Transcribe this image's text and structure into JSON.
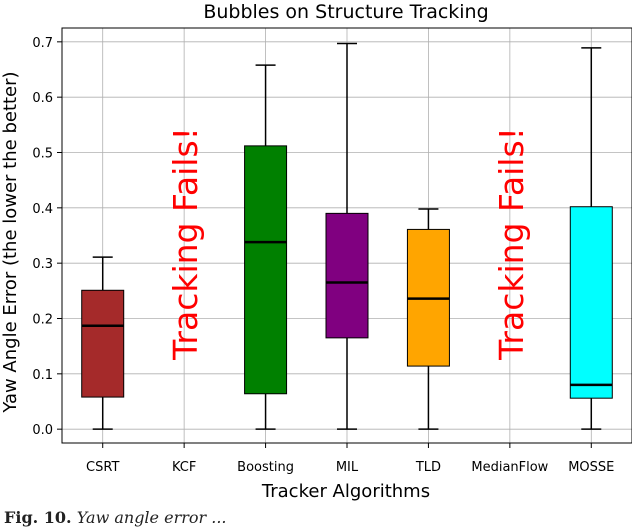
{
  "caption": {
    "label": "Fig. 10.",
    "text": "Yaw angle error ..."
  },
  "chart_data": {
    "type": "box",
    "title": "Bubbles on Structure Tracking",
    "xlabel": "Tracker Algorithms",
    "ylabel": "Yaw Angle Error (the lower the better)",
    "ylim": [
      -0.025,
      0.725
    ],
    "yticks": [
      0.0,
      0.1,
      0.2,
      0.3,
      0.4,
      0.5,
      0.6,
      0.7
    ],
    "grid": true,
    "categories": [
      "CSRT",
      "KCF",
      "Boosting",
      "MIL",
      "TLD",
      "MedianFlow",
      "MOSSE"
    ],
    "boxes": [
      {
        "name": "CSRT",
        "min": 0.0,
        "q1": 0.058,
        "median": 0.187,
        "q3": 0.251,
        "max": 0.311,
        "color": "#a52a2a"
      },
      {
        "name": "KCF",
        "failed": true,
        "annotation": "Tracking Fails!"
      },
      {
        "name": "Boosting",
        "min": 0.0,
        "q1": 0.064,
        "median": 0.338,
        "q3": 0.512,
        "max": 0.658,
        "color": "#008000"
      },
      {
        "name": "MIL",
        "min": 0.0,
        "q1": 0.165,
        "median": 0.265,
        "q3": 0.39,
        "max": 0.697,
        "color": "#800080"
      },
      {
        "name": "TLD",
        "min": 0.0,
        "q1": 0.114,
        "median": 0.236,
        "q3": 0.361,
        "max": 0.398,
        "color": "#ffa500"
      },
      {
        "name": "MedianFlow",
        "failed": true,
        "annotation": "Tracking Fails!"
      },
      {
        "name": "MOSSE",
        "min": 0.0,
        "q1": 0.056,
        "median": 0.08,
        "q3": 0.402,
        "max": 0.689,
        "color": "#00ffff"
      }
    ],
    "annotation_color": "#ff0000"
  }
}
